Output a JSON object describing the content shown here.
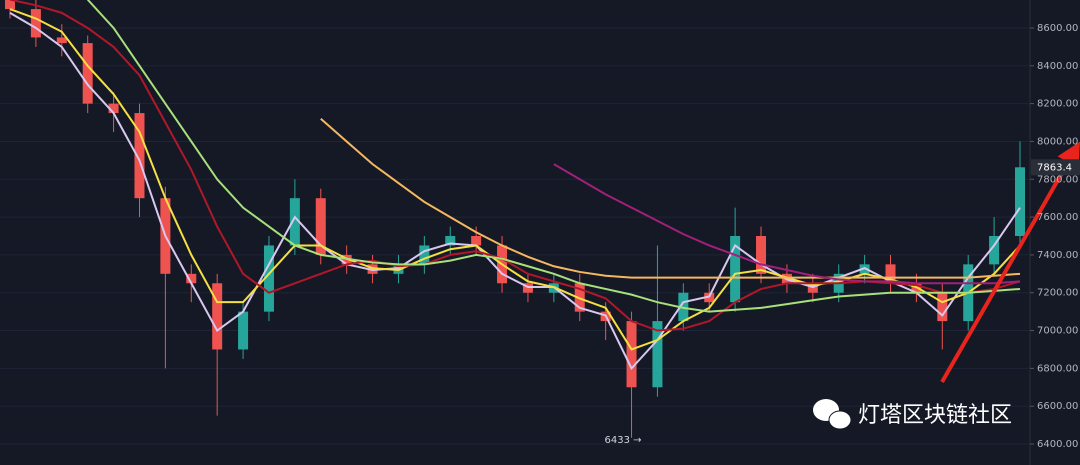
{
  "chart_data": {
    "type": "candlestick",
    "categories": [
      null,
      null,
      null,
      null,
      null,
      null,
      null,
      null,
      null,
      null,
      null,
      null,
      null,
      null,
      null,
      null,
      null,
      null,
      null,
      null,
      null,
      null,
      null,
      null,
      null,
      null,
      null,
      null,
      null,
      null,
      null,
      null,
      null,
      null,
      null,
      null,
      null,
      null,
      null,
      null
    ],
    "open": [
      8750,
      8700,
      8550,
      8520,
      8200,
      8150,
      7700,
      7300,
      7250,
      6900,
      7100,
      7450,
      7700,
      7400,
      7350,
      7300,
      7350,
      7450,
      7500,
      7450,
      7250,
      7200,
      7250,
      7100,
      7050,
      6700,
      7050,
      7200,
      7150,
      7500,
      7300,
      7250,
      7200,
      7300,
      7350,
      7250,
      7200,
      7050,
      7350,
      7500
    ],
    "high": [
      8790,
      8760,
      8620,
      8560,
      8260,
      8200,
      7760,
      7350,
      7300,
      7150,
      7500,
      7800,
      7750,
      7450,
      7400,
      7400,
      7500,
      7550,
      7550,
      7500,
      7300,
      7300,
      7300,
      7150,
      7100,
      7450,
      7250,
      7250,
      7650,
      7550,
      7350,
      7300,
      7350,
      7400,
      7400,
      7300,
      7250,
      7400,
      7600,
      8000
    ],
    "low": [
      8650,
      8500,
      8450,
      8150,
      8050,
      7600,
      6800,
      7150,
      6550,
      6850,
      7050,
      7400,
      7350,
      7300,
      7250,
      7250,
      7300,
      7400,
      7400,
      7200,
      7150,
      7150,
      7050,
      6950,
      6433,
      6650,
      7000,
      7100,
      7100,
      7250,
      7200,
      7150,
      7150,
      7250,
      7200,
      7150,
      6900,
      7000,
      7300,
      7450
    ],
    "close": [
      8700,
      8550,
      8520,
      8200,
      8150,
      7700,
      7300,
      7250,
      6900,
      7100,
      7450,
      7700,
      7400,
      7350,
      7300,
      7350,
      7450,
      7500,
      7450,
      7250,
      7200,
      7250,
      7100,
      7050,
      6700,
      7050,
      7200,
      7150,
      7500,
      7300,
      7250,
      7200,
      7300,
      7350,
      7250,
      7200,
      7050,
      7350,
      7500,
      7863.4
    ],
    "up_color": "#26a69a",
    "down_color": "#ef5350",
    "series": [
      {
        "color": "#d8c8f0",
        "values": [
          8680,
          8600,
          8500,
          8300,
          8150,
          7900,
          7500,
          7250,
          7000,
          7100,
          7350,
          7600,
          7450,
          7350,
          7320,
          7330,
          7420,
          7460,
          7450,
          7300,
          7230,
          7230,
          7120,
          7080,
          6800,
          6950,
          7150,
          7180,
          7450,
          7350,
          7270,
          7230,
          7280,
          7330,
          7260,
          7200,
          7080,
          7280,
          7450,
          7650
        ]
      },
      {
        "color": "#f5e042",
        "values": [
          8700,
          8650,
          8580,
          8400,
          8250,
          8050,
          7700,
          7400,
          7150,
          7150,
          7300,
          7450,
          7450,
          7380,
          7330,
          7320,
          7380,
          7430,
          7450,
          7350,
          7260,
          7230,
          7170,
          7120,
          6900,
          6950,
          7050,
          7120,
          7300,
          7320,
          7280,
          7240,
          7260,
          7300,
          7270,
          7230,
          7150,
          7200,
          7300,
          7450
        ]
      },
      {
        "color": "#b0182a",
        "values": [
          8750,
          8720,
          8680,
          8600,
          8500,
          8350,
          8100,
          7850,
          7550,
          7300,
          7200,
          7250,
          7300,
          7350,
          7370,
          7340,
          7350,
          7400,
          7420,
          7380,
          7300,
          7260,
          7220,
          7170,
          7050,
          7000,
          7010,
          7050,
          7150,
          7220,
          7250,
          7250,
          7250,
          7260,
          7250,
          7240,
          7200,
          7200,
          7220,
          7260
        ]
      },
      {
        "color": "#a8e07a",
        "values": [
          null,
          null,
          null,
          8750,
          8600,
          8400,
          8200,
          8000,
          7800,
          7650,
          7550,
          7450,
          7400,
          7380,
          7360,
          7350,
          7350,
          7370,
          7400,
          7380,
          7340,
          7300,
          7250,
          7220,
          7190,
          7150,
          7120,
          7100,
          7110,
          7120,
          7140,
          7160,
          7180,
          7190,
          7200,
          7200,
          7200,
          7200,
          7210,
          7220
        ]
      },
      {
        "color": "#f5b860",
        "values": [
          null,
          null,
          null,
          null,
          null,
          null,
          null,
          null,
          null,
          null,
          null,
          null,
          8120,
          8000,
          7880,
          7780,
          7680,
          7600,
          7520,
          7450,
          7390,
          7340,
          7310,
          7290,
          7280,
          7280,
          7280,
          7280,
          7280,
          7280,
          7280,
          7280,
          7280,
          7280,
          7280,
          7280,
          7280,
          7280,
          7290,
          7300
        ]
      },
      {
        "color": "#a0207a",
        "values": [
          null,
          null,
          null,
          null,
          null,
          null,
          null,
          null,
          null,
          null,
          null,
          null,
          null,
          null,
          null,
          null,
          null,
          null,
          null,
          null,
          null,
          7880,
          7800,
          7720,
          7650,
          7580,
          7510,
          7450,
          7400,
          7350,
          7320,
          7290,
          7270,
          7260,
          7260,
          7250,
          7250,
          7250,
          7250,
          7260
        ]
      }
    ],
    "ylim": [
      6289,
      8748
    ],
    "yticks": [
      {
        "value": 6400,
        "label": "6400.00"
      },
      {
        "value": 6600,
        "label": "6600.00"
      },
      {
        "value": 6800,
        "label": "6800.00"
      },
      {
        "value": 7000,
        "label": "7000.00"
      },
      {
        "value": 7200,
        "label": "7200.00"
      },
      {
        "value": 7400,
        "label": "7400.00"
      },
      {
        "value": 7600,
        "label": "7600.00"
      },
      {
        "value": 7800,
        "label": "7800.00"
      },
      {
        "value": 8000,
        "label": "8000.00"
      },
      {
        "value": 8200,
        "label": "8200.00"
      },
      {
        "value": 8400,
        "label": "8400.00"
      },
      {
        "value": 8600,
        "label": "8600.00"
      }
    ],
    "grid": true,
    "last_price": 7863.4,
    "low_marker": {
      "value": 6433,
      "label": "6433 →"
    },
    "watermark": "灯塔区块链社区"
  }
}
